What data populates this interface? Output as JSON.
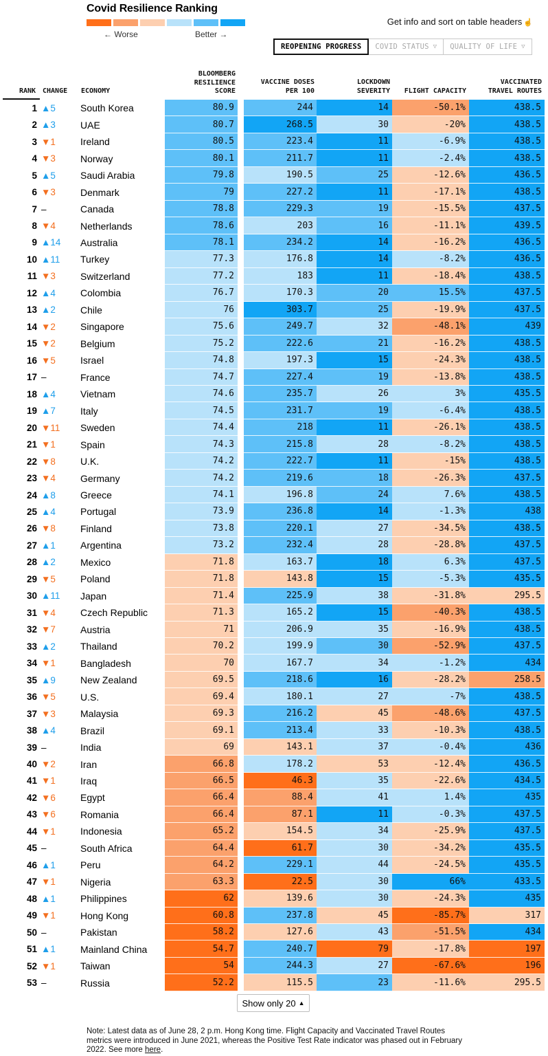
{
  "title": "Covid Resilience Ranking",
  "legend": {
    "worse_label": "← Worse",
    "better_label": "Better →",
    "colors": [
      "#ff6f1a",
      "#fba16c",
      "#fdcfb0",
      "#b8e2fa",
      "#5ec0f8",
      "#12a5f5"
    ]
  },
  "info_text": "Get info and sort on table headers",
  "tabs": [
    {
      "label": "REOPENING PROGRESS",
      "active": true
    },
    {
      "label": "COVID STATUS",
      "active": false
    },
    {
      "label": "QUALITY OF LIFE",
      "active": false
    }
  ],
  "columns": {
    "rank": "RANK",
    "change": "CHANGE",
    "economy": "ECONOMY",
    "score": [
      "BLOOMBERG",
      "RESILIENCE",
      "SCORE"
    ],
    "vaccine": [
      "VACCINE DOSES",
      "PER 100"
    ],
    "lockdown": [
      "LOCKDOWN",
      "SEVERITY"
    ],
    "flight": [
      "FLIGHT CAPACITY"
    ],
    "travel": [
      "VACCINATED",
      "TRAVEL ROUTES"
    ]
  },
  "rows": [
    {
      "rank": "1",
      "change": "▲5",
      "economy": "South Korea",
      "score": "80.9",
      "vaccine": "244",
      "lockdown": "14",
      "flight": "-50.1%",
      "travel": "438.5",
      "colors": [
        "#5ec0f8",
        "#5ec0f8",
        "#12a5f5",
        "#fba16c",
        "#12a5f5"
      ]
    },
    {
      "rank": "2",
      "change": "▲3",
      "economy": "UAE",
      "score": "80.7",
      "vaccine": "268.5",
      "lockdown": "30",
      "flight": "-20%",
      "travel": "438.5",
      "colors": [
        "#5ec0f8",
        "#12a5f5",
        "#b8e2fa",
        "#fdcfb0",
        "#12a5f5"
      ]
    },
    {
      "rank": "3",
      "change": "▼1",
      "economy": "Ireland",
      "score": "80.5",
      "vaccine": "223.4",
      "lockdown": "11",
      "flight": "-6.9%",
      "travel": "438.5",
      "colors": [
        "#5ec0f8",
        "#5ec0f8",
        "#12a5f5",
        "#b8e2fa",
        "#12a5f5"
      ]
    },
    {
      "rank": "4",
      "change": "▼3",
      "economy": "Norway",
      "score": "80.1",
      "vaccine": "211.7",
      "lockdown": "11",
      "flight": "-2.4%",
      "travel": "438.5",
      "colors": [
        "#5ec0f8",
        "#5ec0f8",
        "#12a5f5",
        "#b8e2fa",
        "#12a5f5"
      ]
    },
    {
      "rank": "5",
      "change": "▲5",
      "economy": "Saudi Arabia",
      "score": "79.8",
      "vaccine": "190.5",
      "lockdown": "25",
      "flight": "-12.6%",
      "travel": "436.5",
      "colors": [
        "#5ec0f8",
        "#b8e2fa",
        "#5ec0f8",
        "#fdcfb0",
        "#12a5f5"
      ]
    },
    {
      "rank": "6",
      "change": "▼3",
      "economy": "Denmark",
      "score": "79",
      "vaccine": "227.2",
      "lockdown": "11",
      "flight": "-17.1%",
      "travel": "438.5",
      "colors": [
        "#5ec0f8",
        "#5ec0f8",
        "#12a5f5",
        "#fdcfb0",
        "#12a5f5"
      ]
    },
    {
      "rank": "7",
      "change": "–",
      "economy": "Canada",
      "score": "78.8",
      "vaccine": "229.3",
      "lockdown": "19",
      "flight": "-15.5%",
      "travel": "437.5",
      "colors": [
        "#5ec0f8",
        "#5ec0f8",
        "#5ec0f8",
        "#fdcfb0",
        "#12a5f5"
      ]
    },
    {
      "rank": "8",
      "change": "▼4",
      "economy": "Netherlands",
      "score": "78.6",
      "vaccine": "203",
      "lockdown": "16",
      "flight": "-11.1%",
      "travel": "439.5",
      "colors": [
        "#5ec0f8",
        "#b8e2fa",
        "#5ec0f8",
        "#fdcfb0",
        "#12a5f5"
      ]
    },
    {
      "rank": "9",
      "change": "▲14",
      "economy": "Australia",
      "score": "78.1",
      "vaccine": "234.2",
      "lockdown": "14",
      "flight": "-16.2%",
      "travel": "436.5",
      "colors": [
        "#5ec0f8",
        "#5ec0f8",
        "#12a5f5",
        "#fdcfb0",
        "#12a5f5"
      ]
    },
    {
      "rank": "10",
      "change": "▲11",
      "economy": "Turkey",
      "score": "77.3",
      "vaccine": "176.8",
      "lockdown": "14",
      "flight": "-8.2%",
      "travel": "436.5",
      "colors": [
        "#b8e2fa",
        "#b8e2fa",
        "#12a5f5",
        "#b8e2fa",
        "#12a5f5"
      ]
    },
    {
      "rank": "11",
      "change": "▼3",
      "economy": "Switzerland",
      "score": "77.2",
      "vaccine": "183",
      "lockdown": "11",
      "flight": "-18.4%",
      "travel": "438.5",
      "colors": [
        "#b8e2fa",
        "#b8e2fa",
        "#12a5f5",
        "#fdcfb0",
        "#12a5f5"
      ]
    },
    {
      "rank": "12",
      "change": "▲4",
      "economy": "Colombia",
      "score": "76.7",
      "vaccine": "170.3",
      "lockdown": "20",
      "flight": "15.5%",
      "travel": "437.5",
      "colors": [
        "#b8e2fa",
        "#b8e2fa",
        "#5ec0f8",
        "#5ec0f8",
        "#12a5f5"
      ]
    },
    {
      "rank": "13",
      "change": "▲2",
      "economy": "Chile",
      "score": "76",
      "vaccine": "303.7",
      "lockdown": "25",
      "flight": "-19.9%",
      "travel": "437.5",
      "colors": [
        "#b8e2fa",
        "#12a5f5",
        "#5ec0f8",
        "#fdcfb0",
        "#12a5f5"
      ]
    },
    {
      "rank": "14",
      "change": "▼2",
      "economy": "Singapore",
      "score": "75.6",
      "vaccine": "249.7",
      "lockdown": "32",
      "flight": "-48.1%",
      "travel": "439",
      "colors": [
        "#b8e2fa",
        "#5ec0f8",
        "#b8e2fa",
        "#fba16c",
        "#12a5f5"
      ]
    },
    {
      "rank": "15",
      "change": "▼2",
      "economy": "Belgium",
      "score": "75.2",
      "vaccine": "222.6",
      "lockdown": "21",
      "flight": "-16.2%",
      "travel": "438.5",
      "colors": [
        "#b8e2fa",
        "#5ec0f8",
        "#5ec0f8",
        "#fdcfb0",
        "#12a5f5"
      ]
    },
    {
      "rank": "16",
      "change": "▼5",
      "economy": "Israel",
      "score": "74.8",
      "vaccine": "197.3",
      "lockdown": "15",
      "flight": "-24.3%",
      "travel": "438.5",
      "colors": [
        "#b8e2fa",
        "#b8e2fa",
        "#12a5f5",
        "#fdcfb0",
        "#12a5f5"
      ]
    },
    {
      "rank": "17",
      "change": "–",
      "economy": "France",
      "score": "74.7",
      "vaccine": "227.4",
      "lockdown": "19",
      "flight": "-13.8%",
      "travel": "438.5",
      "colors": [
        "#b8e2fa",
        "#5ec0f8",
        "#5ec0f8",
        "#fdcfb0",
        "#12a5f5"
      ]
    },
    {
      "rank": "18",
      "change": "▲4",
      "economy": "Vietnam",
      "score": "74.6",
      "vaccine": "235.7",
      "lockdown": "26",
      "flight": "3%",
      "travel": "435.5",
      "colors": [
        "#b8e2fa",
        "#5ec0f8",
        "#b8e2fa",
        "#b8e2fa",
        "#12a5f5"
      ]
    },
    {
      "rank": "19",
      "change": "▲7",
      "economy": "Italy",
      "score": "74.5",
      "vaccine": "231.7",
      "lockdown": "19",
      "flight": "-6.4%",
      "travel": "438.5",
      "colors": [
        "#b8e2fa",
        "#5ec0f8",
        "#5ec0f8",
        "#b8e2fa",
        "#12a5f5"
      ]
    },
    {
      "rank": "20",
      "change": "▼11",
      "economy": "Sweden",
      "score": "74.4",
      "vaccine": "218",
      "lockdown": "11",
      "flight": "-26.1%",
      "travel": "438.5",
      "colors": [
        "#b8e2fa",
        "#5ec0f8",
        "#12a5f5",
        "#fdcfb0",
        "#12a5f5"
      ]
    },
    {
      "rank": "21",
      "change": "▼1",
      "economy": "Spain",
      "score": "74.3",
      "vaccine": "215.8",
      "lockdown": "28",
      "flight": "-8.2%",
      "travel": "438.5",
      "colors": [
        "#b8e2fa",
        "#5ec0f8",
        "#b8e2fa",
        "#b8e2fa",
        "#12a5f5"
      ]
    },
    {
      "rank": "22",
      "change": "▼8",
      "economy": "U.K.",
      "score": "74.2",
      "vaccine": "222.7",
      "lockdown": "11",
      "flight": "-15%",
      "travel": "438.5",
      "colors": [
        "#b8e2fa",
        "#5ec0f8",
        "#12a5f5",
        "#fdcfb0",
        "#12a5f5"
      ]
    },
    {
      "rank": "23",
      "change": "▼4",
      "economy": "Germany",
      "score": "74.2",
      "vaccine": "219.6",
      "lockdown": "18",
      "flight": "-26.3%",
      "travel": "437.5",
      "colors": [
        "#b8e2fa",
        "#5ec0f8",
        "#5ec0f8",
        "#fdcfb0",
        "#12a5f5"
      ]
    },
    {
      "rank": "24",
      "change": "▲8",
      "economy": "Greece",
      "score": "74.1",
      "vaccine": "196.8",
      "lockdown": "24",
      "flight": "7.6%",
      "travel": "438.5",
      "colors": [
        "#b8e2fa",
        "#b8e2fa",
        "#5ec0f8",
        "#b8e2fa",
        "#12a5f5"
      ]
    },
    {
      "rank": "25",
      "change": "▲4",
      "economy": "Portugal",
      "score": "73.9",
      "vaccine": "236.8",
      "lockdown": "14",
      "flight": "-1.3%",
      "travel": "438",
      "colors": [
        "#b8e2fa",
        "#5ec0f8",
        "#12a5f5",
        "#b8e2fa",
        "#12a5f5"
      ]
    },
    {
      "rank": "26",
      "change": "▼8",
      "economy": "Finland",
      "score": "73.8",
      "vaccine": "220.1",
      "lockdown": "27",
      "flight": "-34.5%",
      "travel": "438.5",
      "colors": [
        "#b8e2fa",
        "#5ec0f8",
        "#b8e2fa",
        "#fdcfb0",
        "#12a5f5"
      ]
    },
    {
      "rank": "27",
      "change": "▲1",
      "economy": "Argentina",
      "score": "73.2",
      "vaccine": "232.4",
      "lockdown": "28",
      "flight": "-28.8%",
      "travel": "437.5",
      "colors": [
        "#b8e2fa",
        "#5ec0f8",
        "#b8e2fa",
        "#fdcfb0",
        "#12a5f5"
      ]
    },
    {
      "rank": "28",
      "change": "▲2",
      "economy": "Mexico",
      "score": "71.8",
      "vaccine": "163.7",
      "lockdown": "18",
      "flight": "6.3%",
      "travel": "437.5",
      "colors": [
        "#fdcfb0",
        "#b8e2fa",
        "#12a5f5",
        "#b8e2fa",
        "#12a5f5"
      ]
    },
    {
      "rank": "29",
      "change": "▼5",
      "economy": "Poland",
      "score": "71.8",
      "vaccine": "143.8",
      "lockdown": "15",
      "flight": "-5.3%",
      "travel": "435.5",
      "colors": [
        "#fdcfb0",
        "#fdcfb0",
        "#12a5f5",
        "#b8e2fa",
        "#12a5f5"
      ]
    },
    {
      "rank": "30",
      "change": "▲11",
      "economy": "Japan",
      "score": "71.4",
      "vaccine": "225.9",
      "lockdown": "38",
      "flight": "-31.8%",
      "travel": "295.5",
      "colors": [
        "#fdcfb0",
        "#5ec0f8",
        "#b8e2fa",
        "#fdcfb0",
        "#fdcfb0"
      ]
    },
    {
      "rank": "31",
      "change": "▼4",
      "economy": "Czech Republic",
      "score": "71.3",
      "vaccine": "165.2",
      "lockdown": "15",
      "flight": "-40.3%",
      "travel": "438.5",
      "colors": [
        "#fdcfb0",
        "#b8e2fa",
        "#12a5f5",
        "#fba16c",
        "#12a5f5"
      ]
    },
    {
      "rank": "32",
      "change": "▼7",
      "economy": "Austria",
      "score": "71",
      "vaccine": "206.9",
      "lockdown": "35",
      "flight": "-16.9%",
      "travel": "438.5",
      "colors": [
        "#fdcfb0",
        "#b8e2fa",
        "#b8e2fa",
        "#fdcfb0",
        "#12a5f5"
      ]
    },
    {
      "rank": "33",
      "change": "▲2",
      "economy": "Thailand",
      "score": "70.2",
      "vaccine": "199.9",
      "lockdown": "30",
      "flight": "-52.9%",
      "travel": "437.5",
      "colors": [
        "#fdcfb0",
        "#b8e2fa",
        "#5ec0f8",
        "#fba16c",
        "#12a5f5"
      ]
    },
    {
      "rank": "34",
      "change": "▼1",
      "economy": "Bangladesh",
      "score": "70",
      "vaccine": "167.7",
      "lockdown": "34",
      "flight": "-1.2%",
      "travel": "434",
      "colors": [
        "#fdcfb0",
        "#b8e2fa",
        "#b8e2fa",
        "#b8e2fa",
        "#12a5f5"
      ]
    },
    {
      "rank": "35",
      "change": "▲9",
      "economy": "New Zealand",
      "score": "69.5",
      "vaccine": "218.6",
      "lockdown": "16",
      "flight": "-28.2%",
      "travel": "258.5",
      "colors": [
        "#fdcfb0",
        "#5ec0f8",
        "#12a5f5",
        "#fdcfb0",
        "#fba16c"
      ]
    },
    {
      "rank": "36",
      "change": "▼5",
      "economy": "U.S.",
      "score": "69.4",
      "vaccine": "180.1",
      "lockdown": "27",
      "flight": "-7%",
      "travel": "438.5",
      "colors": [
        "#fdcfb0",
        "#b8e2fa",
        "#b8e2fa",
        "#b8e2fa",
        "#12a5f5"
      ]
    },
    {
      "rank": "37",
      "change": "▼3",
      "economy": "Malaysia",
      "score": "69.3",
      "vaccine": "216.2",
      "lockdown": "45",
      "flight": "-48.6%",
      "travel": "437.5",
      "colors": [
        "#fdcfb0",
        "#5ec0f8",
        "#fdcfb0",
        "#fba16c",
        "#12a5f5"
      ]
    },
    {
      "rank": "38",
      "change": "▲4",
      "economy": "Brazil",
      "score": "69.1",
      "vaccine": "213.4",
      "lockdown": "33",
      "flight": "-10.3%",
      "travel": "438.5",
      "colors": [
        "#fdcfb0",
        "#5ec0f8",
        "#b8e2fa",
        "#fdcfb0",
        "#12a5f5"
      ]
    },
    {
      "rank": "39",
      "change": "–",
      "economy": "India",
      "score": "69",
      "vaccine": "143.1",
      "lockdown": "37",
      "flight": "-0.4%",
      "travel": "436",
      "colors": [
        "#fdcfb0",
        "#fdcfb0",
        "#b8e2fa",
        "#b8e2fa",
        "#12a5f5"
      ]
    },
    {
      "rank": "40",
      "change": "▼2",
      "economy": "Iran",
      "score": "66.8",
      "vaccine": "178.2",
      "lockdown": "53",
      "flight": "-12.4%",
      "travel": "436.5",
      "colors": [
        "#fba16c",
        "#b8e2fa",
        "#fdcfb0",
        "#fdcfb0",
        "#12a5f5"
      ]
    },
    {
      "rank": "41",
      "change": "▼1",
      "economy": "Iraq",
      "score": "66.5",
      "vaccine": "46.3",
      "lockdown": "35",
      "flight": "-22.6%",
      "travel": "434.5",
      "colors": [
        "#fba16c",
        "#ff6f1a",
        "#b8e2fa",
        "#fdcfb0",
        "#12a5f5"
      ]
    },
    {
      "rank": "42",
      "change": "▼6",
      "economy": "Egypt",
      "score": "66.4",
      "vaccine": "88.4",
      "lockdown": "41",
      "flight": "1.4%",
      "travel": "435",
      "colors": [
        "#fba16c",
        "#fba16c",
        "#b8e2fa",
        "#b8e2fa",
        "#12a5f5"
      ]
    },
    {
      "rank": "43",
      "change": "▼6",
      "economy": "Romania",
      "score": "66.4",
      "vaccine": "87.1",
      "lockdown": "11",
      "flight": "-0.3%",
      "travel": "437.5",
      "colors": [
        "#fba16c",
        "#fba16c",
        "#12a5f5",
        "#b8e2fa",
        "#12a5f5"
      ]
    },
    {
      "rank": "44",
      "change": "▼1",
      "economy": "Indonesia",
      "score": "65.2",
      "vaccine": "154.5",
      "lockdown": "34",
      "flight": "-25.9%",
      "travel": "437.5",
      "colors": [
        "#fba16c",
        "#fdcfb0",
        "#b8e2fa",
        "#fdcfb0",
        "#12a5f5"
      ]
    },
    {
      "rank": "45",
      "change": "–",
      "economy": "South Africa",
      "score": "64.4",
      "vaccine": "61.7",
      "lockdown": "30",
      "flight": "-34.2%",
      "travel": "435.5",
      "colors": [
        "#fba16c",
        "#ff6f1a",
        "#b8e2fa",
        "#fdcfb0",
        "#12a5f5"
      ]
    },
    {
      "rank": "46",
      "change": "▲1",
      "economy": "Peru",
      "score": "64.2",
      "vaccine": "229.1",
      "lockdown": "44",
      "flight": "-24.5%",
      "travel": "435.5",
      "colors": [
        "#fba16c",
        "#5ec0f8",
        "#b8e2fa",
        "#fdcfb0",
        "#12a5f5"
      ]
    },
    {
      "rank": "47",
      "change": "▼1",
      "economy": "Nigeria",
      "score": "63.3",
      "vaccine": "22.5",
      "lockdown": "30",
      "flight": "66%",
      "travel": "433.5",
      "colors": [
        "#fba16c",
        "#ff6f1a",
        "#b8e2fa",
        "#12a5f5",
        "#12a5f5"
      ]
    },
    {
      "rank": "48",
      "change": "▲1",
      "economy": "Philippines",
      "score": "62",
      "vaccine": "139.6",
      "lockdown": "30",
      "flight": "-24.3%",
      "travel": "435",
      "colors": [
        "#ff6f1a",
        "#fdcfb0",
        "#b8e2fa",
        "#fdcfb0",
        "#12a5f5"
      ]
    },
    {
      "rank": "49",
      "change": "▼1",
      "economy": "Hong Kong",
      "score": "60.8",
      "vaccine": "237.8",
      "lockdown": "45",
      "flight": "-85.7%",
      "travel": "317",
      "colors": [
        "#ff6f1a",
        "#5ec0f8",
        "#fdcfb0",
        "#ff6f1a",
        "#fdcfb0"
      ]
    },
    {
      "rank": "50",
      "change": "–",
      "economy": "Pakistan",
      "score": "58.2",
      "vaccine": "127.6",
      "lockdown": "43",
      "flight": "-51.5%",
      "travel": "434",
      "colors": [
        "#ff6f1a",
        "#fdcfb0",
        "#b8e2fa",
        "#fba16c",
        "#12a5f5"
      ]
    },
    {
      "rank": "51",
      "change": "▲1",
      "economy": "Mainland China",
      "score": "54.7",
      "vaccine": "240.7",
      "lockdown": "79",
      "flight": "-17.8%",
      "travel": "197",
      "colors": [
        "#ff6f1a",
        "#5ec0f8",
        "#ff6f1a",
        "#fdcfb0",
        "#ff6f1a"
      ]
    },
    {
      "rank": "52",
      "change": "▼1",
      "economy": "Taiwan",
      "score": "54",
      "vaccine": "244.3",
      "lockdown": "27",
      "flight": "-67.6%",
      "travel": "196",
      "colors": [
        "#ff6f1a",
        "#5ec0f8",
        "#b8e2fa",
        "#ff6f1a",
        "#ff6f1a"
      ]
    },
    {
      "rank": "53",
      "change": "–",
      "economy": "Russia",
      "score": "52.2",
      "vaccine": "115.5",
      "lockdown": "23",
      "flight": "-11.6%",
      "travel": "295.5",
      "colors": [
        "#ff6f1a",
        "#fdcfb0",
        "#5ec0f8",
        "#fdcfb0",
        "#fdcfb0"
      ]
    }
  ],
  "show_button": "Show only 20",
  "note": {
    "text": "Note: Latest data as of June 28, 2 p.m. Hong Kong time. Flight Capacity and Vaccinated Travel Routes metrics were introduced in June 2021, whereas the Positive Test Rate indicator was phased out in February 2022. See more ",
    "link": "here",
    "suffix": "."
  }
}
